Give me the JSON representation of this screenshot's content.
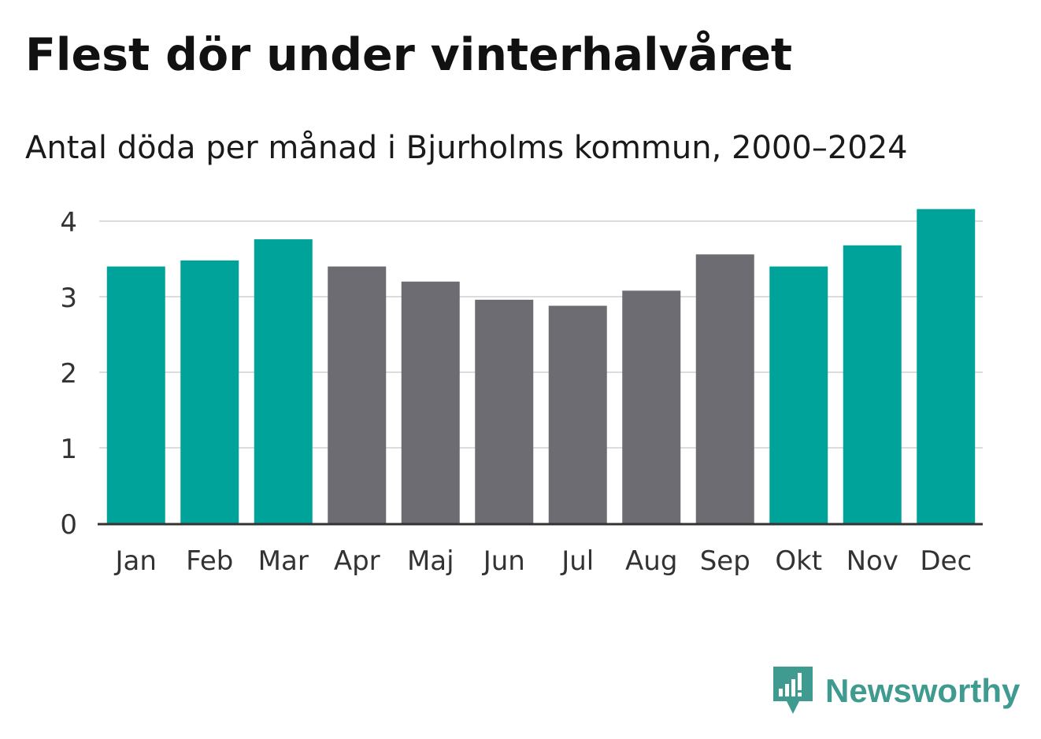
{
  "header": {
    "title": "Flest dör under vinterhalvåret",
    "subtitle": "Antal döda per månad i Bjurholms kommun, 2000–2024"
  },
  "brand": {
    "name": "Newsworthy",
    "icon": "newsworthy-logo-icon",
    "color": "#3f9a8f"
  },
  "colors": {
    "winter": "#00a39a",
    "summer": "#6d6c72",
    "grid": "#dcdcdc",
    "axis": "#333333"
  },
  "chart_data": {
    "type": "bar",
    "title": "Flest dör under vinterhalvåret",
    "subtitle": "Antal döda per månad i Bjurholms kommun, 2000–2024",
    "categories": [
      "Jan",
      "Feb",
      "Mar",
      "Apr",
      "Maj",
      "Jun",
      "Jul",
      "Aug",
      "Sep",
      "Okt",
      "Nov",
      "Dec"
    ],
    "values": [
      3.4,
      3.48,
      3.76,
      3.4,
      3.2,
      2.96,
      2.88,
      3.08,
      3.56,
      3.4,
      3.68,
      4.16
    ],
    "bar_groups": [
      "winter",
      "winter",
      "winter",
      "summer",
      "summer",
      "summer",
      "summer",
      "summer",
      "summer",
      "winter",
      "winter",
      "winter"
    ],
    "yticks": [
      0,
      1,
      2,
      3,
      4
    ],
    "ylim": [
      0,
      4.2
    ],
    "xlabel": "",
    "ylabel": "",
    "grid": true
  }
}
